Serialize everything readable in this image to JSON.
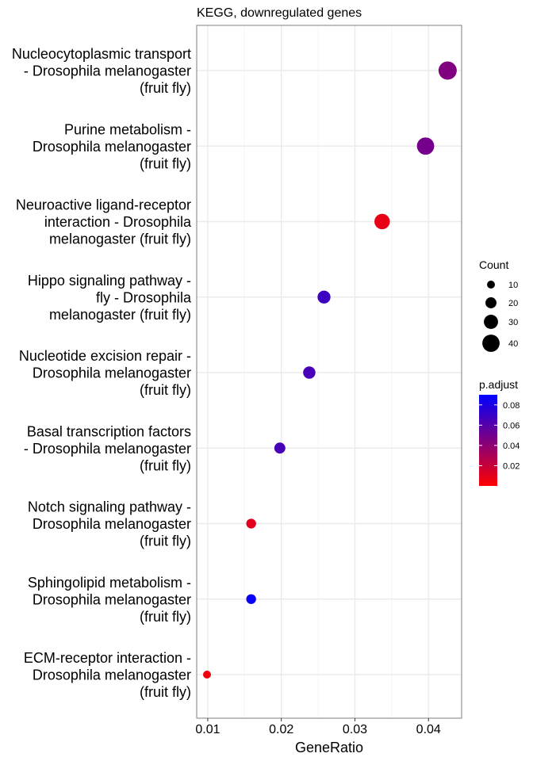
{
  "chart_data": {
    "type": "scatter",
    "title": "KEGG, downregulated genes",
    "xlabel": "GeneRatio",
    "ylabel": "",
    "xlim": [
      0.0085,
      0.0445
    ],
    "x_ticks": [
      "0.01",
      "0.02",
      "0.03",
      "0.04"
    ],
    "x_tick_values": [
      0.01,
      0.02,
      0.03,
      0.04
    ],
    "grid": true,
    "legend_position": "right",
    "points": [
      {
        "label_lines": [
          "Nucleocytoplasmic transport",
          "- Drosophila melanogaster",
          "(fruit fly)"
        ],
        "x": 0.0426,
        "count": 43,
        "p_adjust": 0.045
      },
      {
        "label_lines": [
          "Purine metabolism -",
          "Drosophila melanogaster",
          "(fruit fly)"
        ],
        "x": 0.0396,
        "count": 40,
        "p_adjust": 0.049
      },
      {
        "label_lines": [
          "Neuroactive ligand-receptor",
          "interaction - Drosophila",
          "melanogaster (fruit fly)"
        ],
        "x": 0.0337,
        "count": 34,
        "p_adjust": 0.008
      },
      {
        "label_lines": [
          "Hippo signaling pathway -",
          "fly - Drosophila",
          "melanogaster (fruit fly)"
        ],
        "x": 0.0258,
        "count": 26,
        "p_adjust": 0.068
      },
      {
        "label_lines": [
          "Nucleotide excision repair -",
          "Drosophila melanogaster",
          "(fruit fly)"
        ],
        "x": 0.0238,
        "count": 24,
        "p_adjust": 0.065
      },
      {
        "label_lines": [
          "Basal transcription factors",
          "- Drosophila melanogaster",
          "(fruit fly)"
        ],
        "x": 0.0198,
        "count": 20,
        "p_adjust": 0.065
      },
      {
        "label_lines": [
          "Notch signaling pathway -",
          "Drosophila melanogaster",
          "(fruit fly)"
        ],
        "x": 0.0159,
        "count": 16,
        "p_adjust": 0.01
      },
      {
        "label_lines": [
          "Sphingolipid metabolism -",
          "Drosophila melanogaster",
          "(fruit fly)"
        ],
        "x": 0.0159,
        "count": 16,
        "p_adjust": 0.087
      },
      {
        "label_lines": [
          "ECM-receptor interaction -",
          "Drosophila melanogaster",
          "(fruit fly)"
        ],
        "x": 0.0099,
        "count": 10,
        "p_adjust": 0.005
      }
    ],
    "size_legend": {
      "title": "Count",
      "breaks": [
        10,
        20,
        30,
        40
      ],
      "labels": [
        "10",
        "20",
        "30",
        "40"
      ]
    },
    "color_legend": {
      "title": "p.adjust",
      "range": [
        0.0,
        0.09
      ],
      "breaks": [
        0.02,
        0.04,
        0.06,
        0.08
      ],
      "labels": [
        "0.02",
        "0.04",
        "0.06",
        "0.08"
      ],
      "low_color": "#ff0000",
      "high_color": "#0000ff"
    },
    "colors": {
      "panel_border": "#7f7f7f",
      "grid_major": "#ebebeb",
      "grid_minor": "#f5f5f5",
      "point_low": "#ff0000",
      "point_high": "#0000ff"
    }
  }
}
